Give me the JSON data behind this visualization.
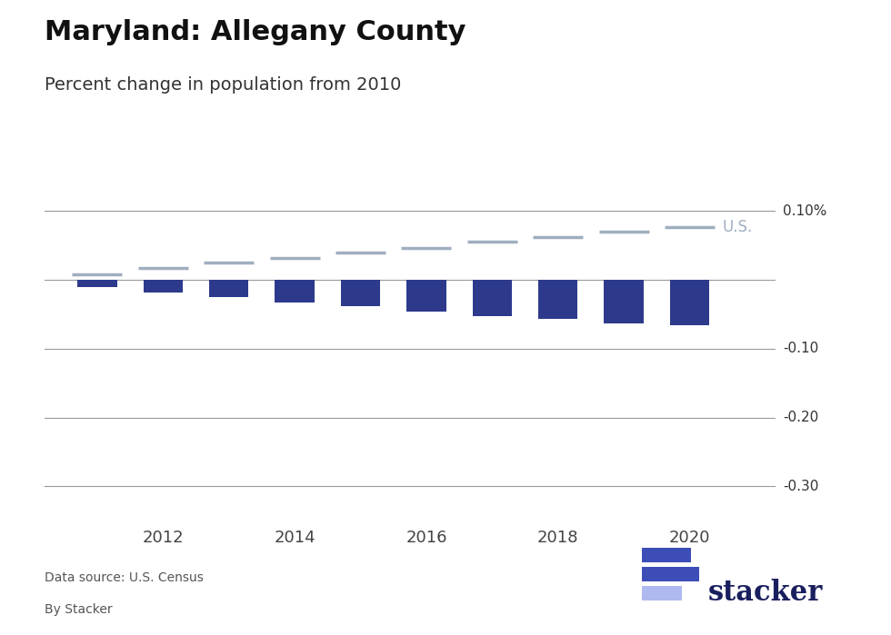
{
  "title": "Maryland: Allegany County",
  "subtitle": "Percent change in population from 2010",
  "title_fontsize": 22,
  "subtitle_fontsize": 14,
  "bar_years": [
    2011,
    2012,
    2013,
    2014,
    2015,
    2016,
    2017,
    2018,
    2019,
    2020
  ],
  "bar_values": [
    -0.01,
    -0.018,
    -0.025,
    -0.033,
    -0.038,
    -0.046,
    -0.052,
    -0.056,
    -0.063,
    -0.0655
  ],
  "us_years": [
    2011,
    2012,
    2013,
    2014,
    2015,
    2016,
    2017,
    2018,
    2019,
    2020
  ],
  "us_values": [
    0.008,
    0.017,
    0.025,
    0.032,
    0.04,
    0.047,
    0.055,
    0.062,
    0.07,
    0.077
  ],
  "bar_color": "#2d3a8c",
  "us_line_color": "#a0aec0",
  "us_label": "U.S.",
  "ylim": [
    -0.35,
    0.13
  ],
  "yticks": [
    0.1,
    0.0,
    -0.1,
    -0.2,
    -0.3
  ],
  "ytick_labels": [
    "0.10%",
    "",
    "-0.10",
    "-0.20",
    "-0.30"
  ],
  "background_color": "#ffffff",
  "source_line1": "Data source: U.S. Census",
  "source_line2": "By Stacker",
  "stacker_logo_text": "stacker",
  "stacker_color": "#1a1f5e",
  "stacker_icon_color1": "#3d4db7",
  "stacker_icon_color2": "#7b84d4",
  "stacker_icon_color3": "#b0b8f0",
  "grid_color": "#999999"
}
